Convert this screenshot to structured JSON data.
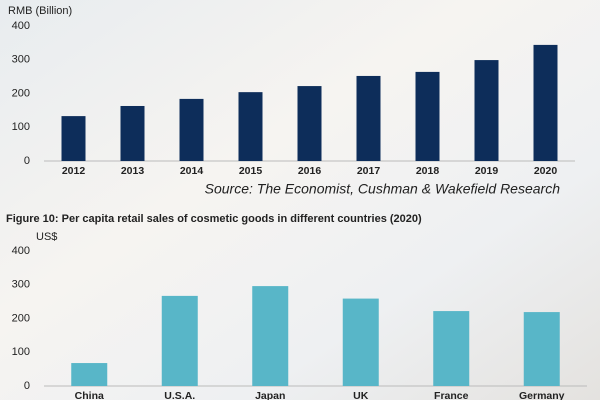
{
  "chart_data": [
    {
      "type": "bar",
      "y_label": "RMB (Billion)",
      "categories": [
        "2012",
        "2013",
        "2014",
        "2015",
        "2016",
        "2017",
        "2018",
        "2019",
        "2020"
      ],
      "values": [
        133,
        163,
        184,
        204,
        222,
        252,
        264,
        299,
        344
      ],
      "color": "#0d2d5a",
      "ylim": [
        0,
        400
      ],
      "yticks": [
        0,
        100,
        200,
        300,
        400
      ],
      "source": "Source: The Economist, Cushman & Wakefield Research"
    },
    {
      "type": "bar",
      "title": "Figure 10: Per capita retail sales of cosmetic goods in different countries (2020)",
      "y_label": "US$",
      "categories": [
        "China",
        "U.S.A.",
        "Japan",
        "UK",
        "France",
        "Germany"
      ],
      "values": [
        68,
        267,
        296,
        259,
        222,
        219
      ],
      "color": "#58b6c8",
      "ylim": [
        0,
        400
      ],
      "yticks": [
        0,
        100,
        200,
        300,
        400
      ]
    }
  ]
}
